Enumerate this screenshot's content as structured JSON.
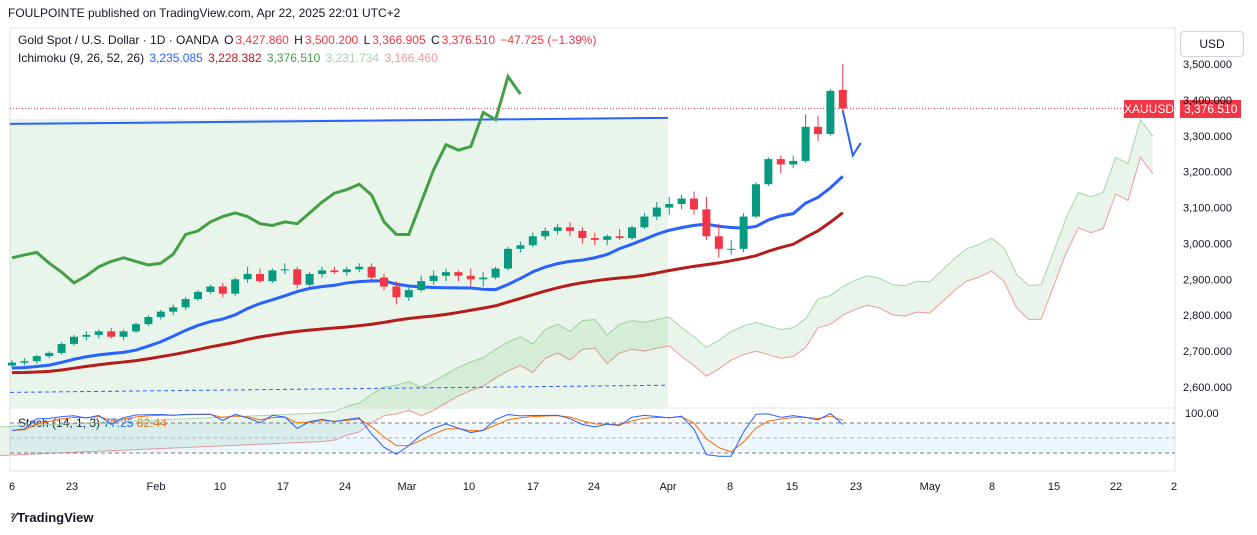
{
  "header": {
    "published": "FOULPOINTE published on TradingView.com, Apr 22, 2025 22:01 UTC+2"
  },
  "legend": {
    "symbol": "Gold Spot / U.S. Dollar · 1D · OANDA",
    "o_label": "O",
    "o": "3,427.860",
    "h_label": "H",
    "h": "3,500.200",
    "l_label": "L",
    "l": "3,366.905",
    "c_label": "C",
    "c": "3,376.510",
    "change": "−47.725 (−1.39%)",
    "ichimoku_name": "Ichimoku (9, 26, 52, 26)",
    "ichimoku_values": [
      "3,235.085",
      "3,228.382",
      "3,376.510",
      "3,231.734",
      "3,166.460"
    ],
    "stoch_name": "Stoch (14, 1, 3)",
    "stoch_values": [
      "77.25",
      "82.44"
    ]
  },
  "currency": "USD",
  "symbol_label": "XAUUSD",
  "last_price": "3,376.510",
  "colors": {
    "up": "#089981",
    "down": "#f23645",
    "tenkan": "#2962ff",
    "kijun": "#b71c1c",
    "chikou": "#43a047",
    "span_a": "#a5d6a7",
    "span_b": "#ef9a9a",
    "trendline": "#2962ff",
    "stoch_k": "#2962ff",
    "stoch_d": "#ff6d00"
  },
  "chart_data": {
    "type": "candlestick",
    "price_axis": {
      "ticks": [
        "3,500.000",
        "3,400.000",
        "3,300.000",
        "3,200.000",
        "3,100.000",
        "3,000.000",
        "2,900.000",
        "2,800.000",
        "2,700.000",
        "2,600.000"
      ],
      "values": [
        3500,
        3400,
        3300,
        3200,
        3100,
        3000,
        2900,
        2800,
        2700,
        2600
      ]
    },
    "stoch_axis": {
      "ticks": [
        "100.00"
      ],
      "values": [
        100
      ]
    },
    "time_axis": {
      "labels": [
        "6",
        "23",
        "Feb",
        "10",
        "17",
        "24",
        "Mar",
        "10",
        "17",
        "24",
        "Apr",
        "8",
        "15",
        "23",
        "May",
        "8",
        "15",
        "22",
        "2"
      ]
    },
    "candles": [
      {
        "o": 2660,
        "h": 2675,
        "l": 2655,
        "c": 2668
      },
      {
        "o": 2668,
        "h": 2680,
        "l": 2660,
        "c": 2672
      },
      {
        "o": 2672,
        "h": 2690,
        "l": 2665,
        "c": 2686
      },
      {
        "o": 2686,
        "h": 2700,
        "l": 2680,
        "c": 2695
      },
      {
        "o": 2695,
        "h": 2725,
        "l": 2690,
        "c": 2720
      },
      {
        "o": 2720,
        "h": 2745,
        "l": 2715,
        "c": 2740
      },
      {
        "o": 2740,
        "h": 2755,
        "l": 2730,
        "c": 2745
      },
      {
        "o": 2745,
        "h": 2760,
        "l": 2735,
        "c": 2755
      },
      {
        "o": 2755,
        "h": 2765,
        "l": 2735,
        "c": 2740
      },
      {
        "o": 2740,
        "h": 2760,
        "l": 2730,
        "c": 2755
      },
      {
        "o": 2755,
        "h": 2780,
        "l": 2750,
        "c": 2775
      },
      {
        "o": 2775,
        "h": 2800,
        "l": 2770,
        "c": 2795
      },
      {
        "o": 2795,
        "h": 2815,
        "l": 2788,
        "c": 2810
      },
      {
        "o": 2810,
        "h": 2830,
        "l": 2800,
        "c": 2822
      },
      {
        "o": 2822,
        "h": 2850,
        "l": 2815,
        "c": 2845
      },
      {
        "o": 2845,
        "h": 2870,
        "l": 2840,
        "c": 2865
      },
      {
        "o": 2865,
        "h": 2885,
        "l": 2860,
        "c": 2880
      },
      {
        "o": 2880,
        "h": 2890,
        "l": 2850,
        "c": 2860
      },
      {
        "o": 2860,
        "h": 2905,
        "l": 2855,
        "c": 2900
      },
      {
        "o": 2900,
        "h": 2935,
        "l": 2890,
        "c": 2915
      },
      {
        "o": 2915,
        "h": 2930,
        "l": 2890,
        "c": 2895
      },
      {
        "o": 2895,
        "h": 2930,
        "l": 2890,
        "c": 2925
      },
      {
        "o": 2925,
        "h": 2945,
        "l": 2915,
        "c": 2928
      },
      {
        "o": 2928,
        "h": 2935,
        "l": 2875,
        "c": 2885
      },
      {
        "o": 2885,
        "h": 2920,
        "l": 2880,
        "c": 2915
      },
      {
        "o": 2915,
        "h": 2935,
        "l": 2905,
        "c": 2925
      },
      {
        "o": 2925,
        "h": 2935,
        "l": 2915,
        "c": 2920
      },
      {
        "o": 2920,
        "h": 2935,
        "l": 2910,
        "c": 2928
      },
      {
        "o": 2928,
        "h": 2945,
        "l": 2920,
        "c": 2935
      },
      {
        "o": 2935,
        "h": 2945,
        "l": 2890,
        "c": 2905
      },
      {
        "o": 2905,
        "h": 2915,
        "l": 2870,
        "c": 2880
      },
      {
        "o": 2880,
        "h": 2895,
        "l": 2830,
        "c": 2850
      },
      {
        "o": 2850,
        "h": 2880,
        "l": 2840,
        "c": 2870
      },
      {
        "o": 2870,
        "h": 2910,
        "l": 2865,
        "c": 2895
      },
      {
        "o": 2895,
        "h": 2925,
        "l": 2885,
        "c": 2910
      },
      {
        "o": 2910,
        "h": 2930,
        "l": 2895,
        "c": 2920
      },
      {
        "o": 2920,
        "h": 2925,
        "l": 2895,
        "c": 2910
      },
      {
        "o": 2910,
        "h": 2930,
        "l": 2880,
        "c": 2900
      },
      {
        "o": 2900,
        "h": 2920,
        "l": 2880,
        "c": 2905
      },
      {
        "o": 2905,
        "h": 2935,
        "l": 2900,
        "c": 2930
      },
      {
        "o": 2930,
        "h": 2990,
        "l": 2925,
        "c": 2985
      },
      {
        "o": 2985,
        "h": 3005,
        "l": 2975,
        "c": 2995
      },
      {
        "o": 2995,
        "h": 3030,
        "l": 2990,
        "c": 3020
      },
      {
        "o": 3020,
        "h": 3045,
        "l": 3010,
        "c": 3035
      },
      {
        "o": 3035,
        "h": 3055,
        "l": 3025,
        "c": 3045
      },
      {
        "o": 3045,
        "h": 3060,
        "l": 3020,
        "c": 3035
      },
      {
        "o": 3035,
        "h": 3045,
        "l": 3000,
        "c": 3015
      },
      {
        "o": 3015,
        "h": 3030,
        "l": 2995,
        "c": 3010
      },
      {
        "o": 3010,
        "h": 3025,
        "l": 2995,
        "c": 3020
      },
      {
        "o": 3020,
        "h": 3040,
        "l": 3010,
        "c": 3015
      },
      {
        "o": 3015,
        "h": 3050,
        "l": 3010,
        "c": 3045
      },
      {
        "o": 3045,
        "h": 3085,
        "l": 3040,
        "c": 3075
      },
      {
        "o": 3075,
        "h": 3115,
        "l": 3065,
        "c": 3100
      },
      {
        "o": 3100,
        "h": 3130,
        "l": 3080,
        "c": 3110
      },
      {
        "o": 3110,
        "h": 3135,
        "l": 3095,
        "c": 3125
      },
      {
        "o": 3125,
        "h": 3145,
        "l": 3080,
        "c": 3095
      },
      {
        "o": 3095,
        "h": 3130,
        "l": 3010,
        "c": 3020
      },
      {
        "o": 3020,
        "h": 3055,
        "l": 2960,
        "c": 2985
      },
      {
        "o": 2985,
        "h": 3010,
        "l": 2970,
        "c": 2985
      },
      {
        "o": 2985,
        "h": 3085,
        "l": 2975,
        "c": 3075
      },
      {
        "o": 3075,
        "h": 3170,
        "l": 3070,
        "c": 3165
      },
      {
        "o": 3165,
        "h": 3240,
        "l": 3160,
        "c": 3235
      },
      {
        "o": 3235,
        "h": 3245,
        "l": 3195,
        "c": 3220
      },
      {
        "o": 3220,
        "h": 3245,
        "l": 3210,
        "c": 3230
      },
      {
        "o": 3230,
        "h": 3360,
        "l": 3225,
        "c": 3325
      },
      {
        "o": 3325,
        "h": 3355,
        "l": 3285,
        "c": 3305
      },
      {
        "o": 3305,
        "h": 3430,
        "l": 3300,
        "c": 3425
      },
      {
        "o": 3427.86,
        "h": 3500.2,
        "l": 3366.905,
        "c": 3376.51
      }
    ],
    "last_close": 3376.51
  }
}
